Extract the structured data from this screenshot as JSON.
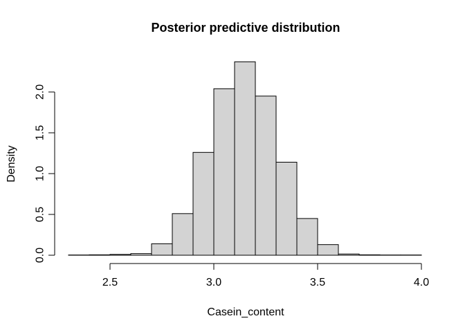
{
  "chart_data": {
    "type": "bar",
    "subtype": "histogram",
    "title": "Posterior predictive distribution",
    "xlabel": "Casein_content",
    "ylabel": "Density",
    "bins": {
      "start": 2.3,
      "width": 0.1
    },
    "densities": [
      0.003,
      0.005,
      0.01,
      0.02,
      0.14,
      0.51,
      1.26,
      2.04,
      2.37,
      1.95,
      1.14,
      0.45,
      0.13,
      0.015,
      0.005,
      0.003,
      0.003
    ],
    "bin_edges": [
      2.3,
      2.4,
      2.5,
      2.6,
      2.7,
      2.8,
      2.9,
      3.0,
      3.1,
      3.2,
      3.3,
      3.4,
      3.5,
      3.6,
      3.7,
      3.8,
      3.9,
      4.0
    ],
    "x_ticks": {
      "values": [
        2.5,
        3.0,
        3.5,
        4.0
      ],
      "labels": [
        "2.5",
        "3.0",
        "3.5",
        "4.0"
      ]
    },
    "y_ticks": {
      "values": [
        0.0,
        0.5,
        1.0,
        1.5,
        2.0
      ],
      "labels": [
        "0.0",
        "0.5",
        "1.0",
        "1.5",
        "2.0"
      ]
    },
    "xlim": [
      2.3,
      4.0
    ],
    "ylim": [
      0,
      2.37
    ],
    "grid": false,
    "legend": "none",
    "colors": {
      "bar_fill": "#d3d3d3",
      "bar_stroke": "#000000",
      "axis": "#000000",
      "text": "#000000",
      "background": "#ffffff"
    }
  }
}
